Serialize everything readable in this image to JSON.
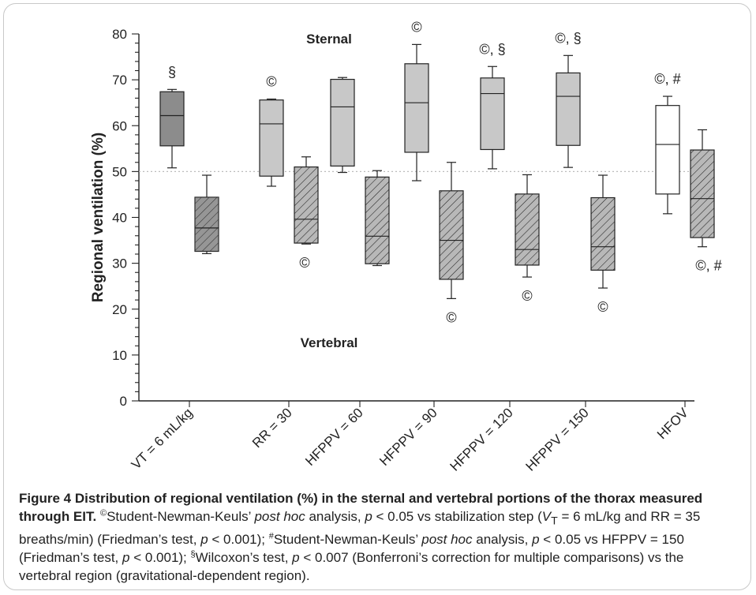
{
  "chart_data": {
    "type": "boxplot",
    "ylabel": "Regional ventilation (%)",
    "ylim": [
      0,
      80
    ],
    "yticks": [
      0,
      10,
      20,
      30,
      40,
      50,
      60,
      70,
      80
    ],
    "reference_line": 50,
    "region_labels": {
      "top": "Sternal",
      "bottom": "Vertebral"
    },
    "categories": [
      "VT = 6 mL/kg",
      "RR = 30",
      "HFPPV = 60",
      "HFPPV = 90",
      "HFPPV = 120",
      "HFPPV = 150",
      "HFOV"
    ],
    "series": [
      {
        "name": "Sternal",
        "boxes": [
          {
            "whisker_low": 50.8,
            "q1": 55.6,
            "median": 62.2,
            "q3": 67.4,
            "whisker_high": 67.9,
            "annotation": "§"
          },
          {
            "whisker_low": 46.8,
            "q1": 49.0,
            "median": 60.4,
            "q3": 65.6,
            "whisker_high": 65.8,
            "annotation": "©"
          },
          {
            "whisker_low": 49.8,
            "q1": 51.2,
            "median": 64.1,
            "q3": 70.1,
            "whisker_high": 70.5,
            "annotation": ""
          },
          {
            "whisker_low": 48.0,
            "q1": 54.2,
            "median": 65.0,
            "q3": 73.5,
            "whisker_high": 77.7,
            "annotation": "©"
          },
          {
            "whisker_low": 50.6,
            "q1": 54.8,
            "median": 67.0,
            "q3": 70.4,
            "whisker_high": 72.9,
            "annotation": "©, §"
          },
          {
            "whisker_low": 50.9,
            "q1": 55.7,
            "median": 66.4,
            "q3": 71.5,
            "whisker_high": 75.3,
            "annotation": "©, §"
          },
          {
            "whisker_low": 40.8,
            "q1": 45.1,
            "median": 55.9,
            "q3": 64.4,
            "whisker_high": 66.4,
            "annotation": "©, #"
          }
        ]
      },
      {
        "name": "Vertebral",
        "boxes": [
          {
            "whisker_low": 32.1,
            "q1": 32.6,
            "median": 37.7,
            "q3": 44.4,
            "whisker_high": 49.2,
            "annotation": ""
          },
          {
            "whisker_low": 34.2,
            "q1": 34.4,
            "median": 39.6,
            "q3": 51.0,
            "whisker_high": 53.2,
            "annotation": "©"
          },
          {
            "whisker_low": 29.5,
            "q1": 29.9,
            "median": 35.9,
            "q3": 48.8,
            "whisker_high": 50.2,
            "annotation": ""
          },
          {
            "whisker_low": 22.3,
            "q1": 26.5,
            "median": 35.0,
            "q3": 45.8,
            "whisker_high": 52.0,
            "annotation": "©"
          },
          {
            "whisker_low": 27.0,
            "q1": 29.6,
            "median": 33.0,
            "q3": 45.1,
            "whisker_high": 49.3,
            "annotation": "©"
          },
          {
            "whisker_low": 24.6,
            "q1": 28.5,
            "median": 33.6,
            "q3": 44.3,
            "whisker_high": 49.2,
            "annotation": "©"
          },
          {
            "whisker_low": 33.6,
            "q1": 35.6,
            "median": 44.1,
            "q3": 54.7,
            "whisker_high": 59.1,
            "annotation": "©, #"
          }
        ]
      }
    ],
    "colors": {
      "first_sternal": "#8c8c8c",
      "first_vertebral": "#8c8c8c",
      "sternal": "#c8c8c8",
      "vertebral": "#b0b0b0",
      "hfov": "#ffffff",
      "stroke": "#222222",
      "reference_line": "#bbbbbb"
    }
  },
  "caption": {
    "title": "Figure 4 Distribution of regional ventilation (%) in the sternal and vertebral portions of the thorax measured through EIT.",
    "s1_sym": "©",
    "s1_a": "Student-Newman-Keuls’ ",
    "s1_b": "post hoc",
    "s1_c": " analysis, ",
    "s1_d": "p",
    "s1_e": " < 0.05 vs stabilization step (",
    "s1_f": "V",
    "s1_g": "T",
    "s1_h": " = 6 mL/kg and RR = 35 breaths/min) (Friedman’s test, ",
    "s1_i": "p",
    "s1_j": " < 0.001); ",
    "s2_sym": "#",
    "s2_a": "Student-Newman-Keuls’ ",
    "s2_b": "post hoc",
    "s2_c": " analysis, ",
    "s2_d": "p",
    "s2_e": " < 0.05 vs HFPPV = 150 (Friedman’s test, ",
    "s2_f": "p",
    "s2_g": " < 0.001); ",
    "s3_sym": "§",
    "s3_a": "Wilcoxon’s test, ",
    "s3_b": "p",
    "s3_c": " < 0.007 (Bonferroni’s correction for multiple comparisons) vs the vertebral region (gravitational-dependent region)."
  }
}
